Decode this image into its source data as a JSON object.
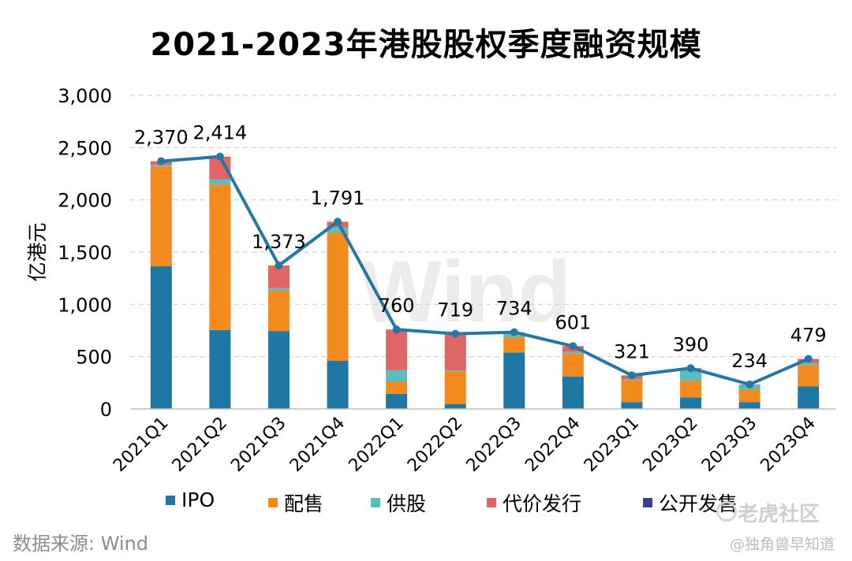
{
  "chart_data": {
    "type": "bar",
    "title": "2021-2023年港股股权季度融资规模",
    "ylabel": "亿港元",
    "ylim": [
      0,
      3000
    ],
    "yticks": [
      0,
      500,
      1000,
      1500,
      2000,
      2500,
      3000
    ],
    "ytick_labels": [
      "0",
      "500",
      "1,000",
      "1,500",
      "2,000",
      "2,500",
      "3,000"
    ],
    "stacked": true,
    "categories": [
      "2021Q1",
      "2021Q2",
      "2021Q3",
      "2021Q4",
      "2022Q1",
      "2022Q2",
      "2022Q3",
      "2022Q4",
      "2023Q1",
      "2023Q2",
      "2023Q3",
      "2023Q4"
    ],
    "series": [
      {
        "name": "IPO",
        "color": "#1f77a4",
        "values": [
          1365,
          755,
          745,
          460,
          145,
          45,
          540,
          310,
          65,
          110,
          65,
          215
        ]
      },
      {
        "name": "配售",
        "color": "#f28a1e",
        "values": [
          955,
          1390,
          385,
          1225,
          115,
          315,
          145,
          220,
          210,
          160,
          120,
          205
        ]
      },
      {
        "name": "供股",
        "color": "#5bbcc2",
        "values": [
          15,
          50,
          25,
          50,
          110,
          10,
          40,
          15,
          10,
          110,
          45,
          20
        ]
      },
      {
        "name": "代价发行",
        "color": "#e06666",
        "values": [
          35,
          219,
          218,
          56,
          390,
          349,
          9,
          56,
          36,
          10,
          4,
          39
        ]
      },
      {
        "name": "公开发售",
        "color": "#3c3f8f",
        "values": [
          0,
          0,
          0,
          0,
          0,
          0,
          0,
          0,
          0,
          0,
          0,
          0
        ]
      }
    ],
    "totals": {
      "color": "#2578a6",
      "values": [
        2370,
        2414,
        1373,
        1791,
        760,
        719,
        734,
        601,
        321,
        390,
        234,
        479
      ],
      "labels": [
        "2,370",
        "2,414",
        "1,373",
        "1,791",
        "760",
        "719",
        "734",
        "601",
        "321",
        "390",
        "234",
        "479"
      ]
    },
    "grid": "dashed horizontal",
    "legend": "bottom"
  },
  "footer": {
    "source": "数据来源: Wind",
    "watermark_main": "老虎社区",
    "watermark_sub": "@独角兽早知道",
    "chart_watermark": "Wind"
  }
}
